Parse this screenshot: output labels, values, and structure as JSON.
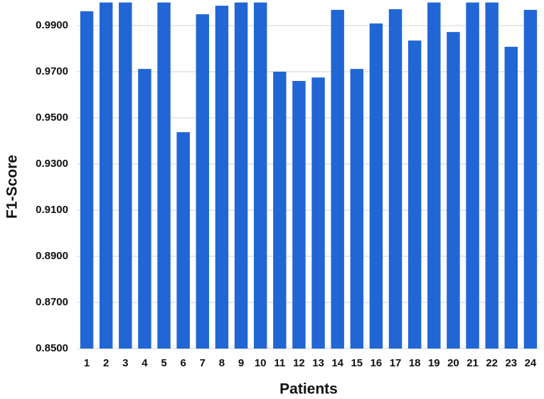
{
  "chart_data": {
    "type": "bar",
    "x_label": "Patients",
    "y_label": "F1-Score",
    "categories": [
      "1",
      "2",
      "3",
      "4",
      "5",
      "6",
      "7",
      "8",
      "9",
      "10",
      "11",
      "12",
      "13",
      "14",
      "15",
      "16",
      "17",
      "18",
      "19",
      "20",
      "21",
      "22",
      "23",
      "24"
    ],
    "values": [
      0.9962,
      1.0,
      1.0,
      0.9712,
      1.0,
      0.9438,
      0.9949,
      0.9986,
      1.0,
      1.0,
      0.97,
      0.966,
      0.9675,
      0.9968,
      0.9712,
      0.9909,
      0.9971,
      0.9835,
      1.0,
      0.9872,
      1.0,
      1.0,
      0.9808,
      0.9968
    ],
    "color": "#2166d4",
    "ylim": [
      0.85,
      1.0
    ],
    "yticks": [
      {
        "value": 0.85,
        "label": "0.8500"
      },
      {
        "value": 0.87,
        "label": "0.8700"
      },
      {
        "value": 0.89,
        "label": "0.8900"
      },
      {
        "value": 0.91,
        "label": "0.9100"
      },
      {
        "value": 0.93,
        "label": "0.9300"
      },
      {
        "value": 0.95,
        "label": "0.9500"
      },
      {
        "value": 0.97,
        "label": "0.9700"
      },
      {
        "value": 0.99,
        "label": "0.9900"
      }
    ],
    "grid": true
  }
}
